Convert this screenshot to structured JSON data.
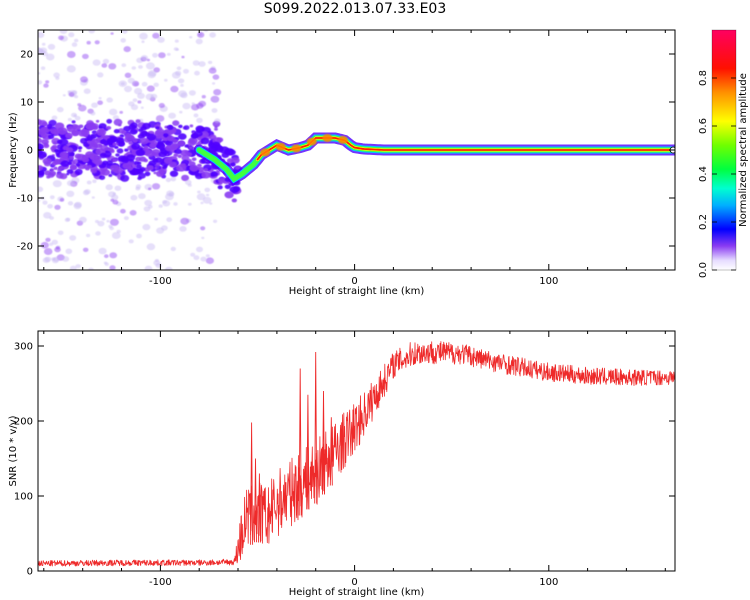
{
  "title": "S099.2022.013.07.33.E03",
  "colors": {
    "snr_line": "#ee2a2a",
    "spectral_rainbow": [
      "#c8b8f4",
      "#8a3cf2",
      "#5000ff",
      "#0000ff",
      "#00c8ff",
      "#00ff90",
      "#20ff00",
      "#a0ff00",
      "#ffff00",
      "#ffa000",
      "#ff2000",
      "#ff0050"
    ]
  },
  "chart_data": [
    {
      "type": "heatmap",
      "name": "spectrogram",
      "xlabel": "Height of straight line (km)",
      "ylabel": "Frequency (Hz)",
      "xlim": [
        -163,
        165
      ],
      "ylim": [
        -25,
        25
      ],
      "xticks": [
        -100,
        0,
        100
      ],
      "yticks": [
        -20,
        -10,
        0,
        10,
        20
      ],
      "grid": false,
      "ridge": {
        "x": [
          -163,
          -120,
          -80,
          -72,
          -66,
          -62,
          -58,
          -52,
          -48,
          -44,
          -40,
          -34,
          -28,
          -24,
          -20,
          -16,
          -10,
          -5,
          -2,
          0,
          5,
          15,
          40,
          80,
          120,
          165
        ],
        "y": [
          0,
          0,
          0,
          -2,
          -4,
          -6,
          -5,
          -3,
          -1,
          0,
          1,
          0,
          0.5,
          1,
          2.5,
          2.5,
          2.5,
          2,
          1,
          0.5,
          0.2,
          0,
          0,
          0,
          0,
          0
        ]
      },
      "colorbar": {
        "label": "Normalized spectral amplitude",
        "ticks": [
          0.0,
          0.2,
          0.4,
          0.6,
          0.8
        ],
        "range": [
          0.0,
          1.0
        ]
      }
    },
    {
      "type": "line",
      "name": "snr",
      "xlabel": "Height of straight line (km)",
      "ylabel": "SNR (10 * v/v)",
      "xlim": [
        -163,
        165
      ],
      "ylim": [
        0,
        320
      ],
      "xticks": [
        -100,
        0,
        100
      ],
      "yticks": [
        0,
        100,
        200,
        300
      ],
      "grid": false,
      "envelope": {
        "x": [
          -163,
          -120,
          -80,
          -62,
          -60,
          -56,
          -50,
          -45,
          -40,
          -30,
          -20,
          -10,
          0,
          10,
          20,
          30,
          40,
          55,
          70,
          85,
          100,
          120,
          140,
          165
        ],
        "y": [
          10,
          11,
          11,
          12,
          30,
          70,
          80,
          70,
          90,
          110,
          130,
          160,
          190,
          230,
          275,
          290,
          292,
          290,
          280,
          272,
          265,
          260,
          258,
          258
        ]
      },
      "noise_amplitude": {
        "x": [
          -163,
          -62,
          -58,
          -40,
          -20,
          0,
          20,
          60,
          165
        ],
        "y": [
          4,
          4,
          40,
          45,
          45,
          35,
          18,
          14,
          10
        ]
      },
      "spikes": {
        "x": [
          -53,
          -51,
          -49,
          -28,
          -24,
          -20,
          -16,
          -12
        ],
        "y": [
          198,
          150,
          130,
          270,
          235,
          292,
          240,
          205
        ]
      }
    }
  ]
}
